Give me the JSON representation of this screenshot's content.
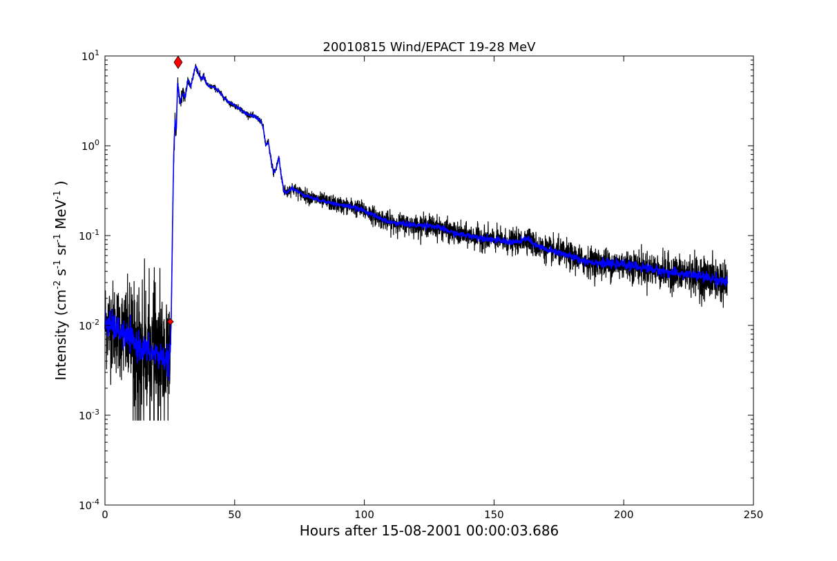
{
  "chart_data": {
    "type": "line",
    "title": "20010815 Wind/EPACT 19-28 MeV",
    "xlabel": "Hours after 15-08-2001 00:00:03.686",
    "ylabel_parts": [
      "Intensity (cm",
      "-2",
      " s",
      "-1",
      " sr",
      "-1",
      " MeV",
      "-1",
      " )"
    ],
    "xlim": [
      0,
      250
    ],
    "ylim": [
      0.0001,
      10
    ],
    "yscale": "log",
    "grid": false,
    "x_ticks": [
      "0",
      "50",
      "100",
      "150",
      "200",
      "250"
    ],
    "y_ticks": [
      {
        "base": "10",
        "exp": "-4"
      },
      {
        "base": "10",
        "exp": "-3"
      },
      {
        "base": "10",
        "exp": "-2"
      },
      {
        "base": "10",
        "exp": "-1"
      },
      {
        "base": "10",
        "exp": "0"
      },
      {
        "base": "10",
        "exp": "1"
      }
    ],
    "series": [
      {
        "color": "#000000",
        "style": "raw",
        "x": [
          0,
          2,
          4,
          6,
          8,
          10,
          12,
          14,
          16,
          18,
          20,
          22,
          24,
          25,
          25.5,
          26,
          26.5,
          27,
          27.5,
          28,
          29,
          30,
          31,
          32,
          33,
          34,
          35,
          36,
          37,
          38,
          39,
          40,
          42,
          44,
          46,
          48,
          50,
          52,
          54,
          56,
          58,
          60,
          61,
          62,
          63,
          64,
          65,
          66,
          67,
          68,
          69,
          70,
          72,
          75,
          80,
          85,
          90,
          95,
          100,
          105,
          110,
          115,
          120,
          125,
          130,
          135,
          140,
          145,
          150,
          155,
          160,
          163,
          165,
          170,
          175,
          180,
          185,
          190,
          195,
          200,
          205,
          210,
          215,
          220,
          225,
          230,
          235,
          240
        ],
        "y": [
          0.011,
          0.01,
          0.0095,
          0.0085,
          0.0075,
          0.007,
          0.006,
          0.0058,
          0.0052,
          0.005,
          0.0048,
          0.0045,
          0.0042,
          0.004,
          0.01,
          0.1,
          0.8,
          1.8,
          1.5,
          5.0,
          3.0,
          3.8,
          3.5,
          5.5,
          4.5,
          6.0,
          7.8,
          6.5,
          5.5,
          6.0,
          5.0,
          4.6,
          4.5,
          4.0,
          3.4,
          3.0,
          2.8,
          2.6,
          2.3,
          2.2,
          2.1,
          1.9,
          1.6,
          1.0,
          1.1,
          0.7,
          0.5,
          0.55,
          0.75,
          0.45,
          0.32,
          0.3,
          0.34,
          0.3,
          0.26,
          0.24,
          0.22,
          0.21,
          0.19,
          0.16,
          0.14,
          0.135,
          0.13,
          0.13,
          0.12,
          0.105,
          0.1,
          0.095,
          0.09,
          0.085,
          0.085,
          0.095,
          0.08,
          0.07,
          0.065,
          0.058,
          0.052,
          0.05,
          0.048,
          0.048,
          0.045,
          0.043,
          0.04,
          0.038,
          0.037,
          0.035,
          0.033,
          0.03
        ],
        "noise_dex": [
          0.5,
          0.5,
          0.5,
          0.5,
          0.55,
          0.6,
          0.65,
          0.7,
          0.7,
          0.7,
          0.7,
          0.7,
          0.7,
          0.7,
          0.1,
          0.1,
          0.1,
          0.1,
          0.1,
          0.08,
          0.08,
          0.06,
          0.06,
          0.05,
          0.05,
          0.05,
          0.04,
          0.04,
          0.04,
          0.04,
          0.04,
          0.03,
          0.03,
          0.03,
          0.03,
          0.03,
          0.03,
          0.03,
          0.03,
          0.03,
          0.03,
          0.03,
          0.04,
          0.04,
          0.04,
          0.05,
          0.05,
          0.05,
          0.05,
          0.06,
          0.06,
          0.07,
          0.07,
          0.07,
          0.08,
          0.08,
          0.09,
          0.09,
          0.1,
          0.1,
          0.11,
          0.11,
          0.11,
          0.12,
          0.12,
          0.12,
          0.12,
          0.13,
          0.13,
          0.13,
          0.13,
          0.13,
          0.14,
          0.14,
          0.15,
          0.15,
          0.16,
          0.16,
          0.17,
          0.17,
          0.18,
          0.18,
          0.19,
          0.2,
          0.21,
          0.22,
          0.23,
          0.24
        ]
      },
      {
        "color": "#0000ff",
        "style": "smoothed",
        "x": [
          0,
          2,
          4,
          6,
          8,
          10,
          12,
          14,
          16,
          18,
          20,
          22,
          24,
          25,
          25.5,
          26,
          26.5,
          27,
          27.5,
          28,
          29,
          30,
          31,
          32,
          33,
          34,
          35,
          36,
          37,
          38,
          39,
          40,
          42,
          44,
          46,
          48,
          50,
          52,
          54,
          56,
          58,
          60,
          61,
          62,
          63,
          64,
          65,
          66,
          67,
          68,
          69,
          70,
          72,
          75,
          80,
          85,
          90,
          95,
          100,
          105,
          110,
          115,
          120,
          125,
          130,
          135,
          140,
          145,
          150,
          155,
          160,
          163,
          165,
          170,
          175,
          180,
          185,
          190,
          195,
          200,
          205,
          210,
          215,
          220,
          225,
          230,
          235,
          240
        ],
        "y": [
          0.011,
          0.01,
          0.0095,
          0.0085,
          0.0075,
          0.007,
          0.006,
          0.0058,
          0.0052,
          0.005,
          0.0048,
          0.0045,
          0.0042,
          0.004,
          0.01,
          0.1,
          0.8,
          1.8,
          1.5,
          5.0,
          3.0,
          3.8,
          3.5,
          5.5,
          4.5,
          6.0,
          7.8,
          6.5,
          5.5,
          6.0,
          5.0,
          4.6,
          4.5,
          4.0,
          3.4,
          3.0,
          2.8,
          2.6,
          2.3,
          2.2,
          2.1,
          1.9,
          1.6,
          1.0,
          1.1,
          0.7,
          0.5,
          0.55,
          0.75,
          0.45,
          0.32,
          0.3,
          0.34,
          0.3,
          0.26,
          0.24,
          0.22,
          0.21,
          0.19,
          0.16,
          0.14,
          0.135,
          0.13,
          0.13,
          0.12,
          0.105,
          0.1,
          0.095,
          0.09,
          0.085,
          0.085,
          0.095,
          0.08,
          0.07,
          0.065,
          0.058,
          0.052,
          0.05,
          0.048,
          0.048,
          0.045,
          0.043,
          0.04,
          0.038,
          0.037,
          0.035,
          0.033,
          0.03
        ],
        "noise_dex": [
          0.15,
          0.15,
          0.15,
          0.15,
          0.15,
          0.15,
          0.15,
          0.15,
          0.15,
          0.15,
          0.15,
          0.15,
          0.15,
          0.15,
          0.03,
          0.03,
          0.03,
          0.03,
          0.03,
          0.02,
          0.02,
          0.02,
          0.02,
          0.02,
          0.02,
          0.02,
          0.02,
          0.02,
          0.02,
          0.02,
          0.02,
          0.015,
          0.015,
          0.015,
          0.015,
          0.015,
          0.015,
          0.015,
          0.015,
          0.015,
          0.015,
          0.015,
          0.015,
          0.015,
          0.015,
          0.015,
          0.015,
          0.015,
          0.015,
          0.02,
          0.02,
          0.02,
          0.02,
          0.02,
          0.02,
          0.02,
          0.025,
          0.025,
          0.025,
          0.025,
          0.03,
          0.03,
          0.03,
          0.03,
          0.03,
          0.03,
          0.03,
          0.035,
          0.035,
          0.035,
          0.035,
          0.035,
          0.035,
          0.04,
          0.04,
          0.04,
          0.04,
          0.045,
          0.045,
          0.045,
          0.05,
          0.05,
          0.05,
          0.05,
          0.055,
          0.055,
          0.06,
          0.06
        ]
      }
    ],
    "markers": [
      {
        "x": 25.2,
        "y": 0.011,
        "shape": "diamond",
        "color": "#ff0000",
        "size": "small"
      },
      {
        "x": 28.2,
        "y": 8.5,
        "shape": "diamond",
        "color": "#ff0000",
        "size": "large"
      }
    ]
  }
}
